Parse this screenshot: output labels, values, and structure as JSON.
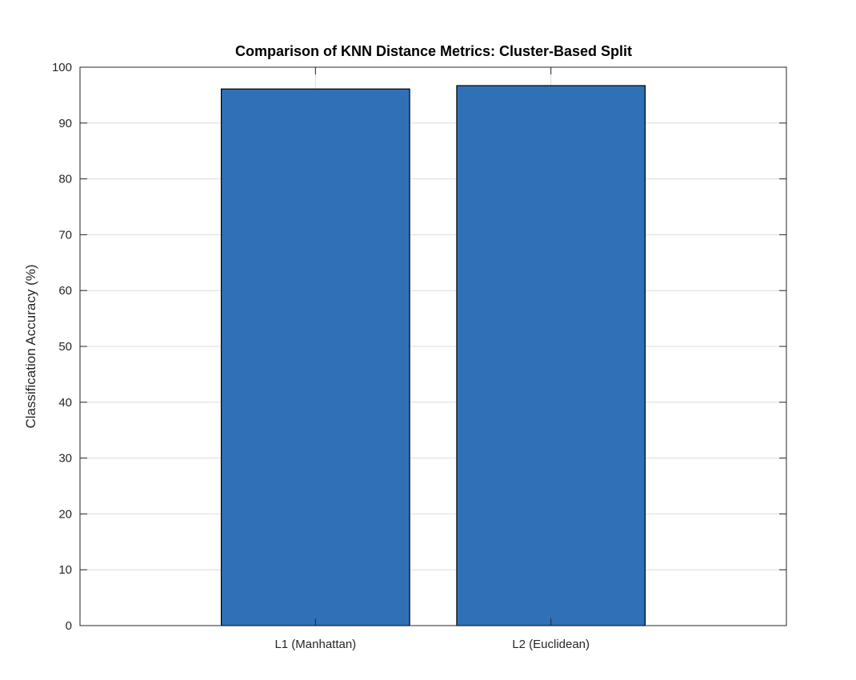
{
  "chart_data": {
    "type": "bar",
    "title": "Comparison of KNN Distance Metrics: Cluster-Based Split",
    "xlabel": "",
    "ylabel": "Classification Accuracy (%)",
    "categories": [
      "L1 (Manhattan)",
      "L2 (Euclidean)"
    ],
    "values": [
      96.1,
      96.7
    ],
    "ylim": [
      0,
      100
    ],
    "yticks": [
      0,
      10,
      20,
      30,
      40,
      50,
      60,
      70,
      80,
      90,
      100
    ],
    "grid": true,
    "bar_color": "#3070b7",
    "legend": "none"
  }
}
